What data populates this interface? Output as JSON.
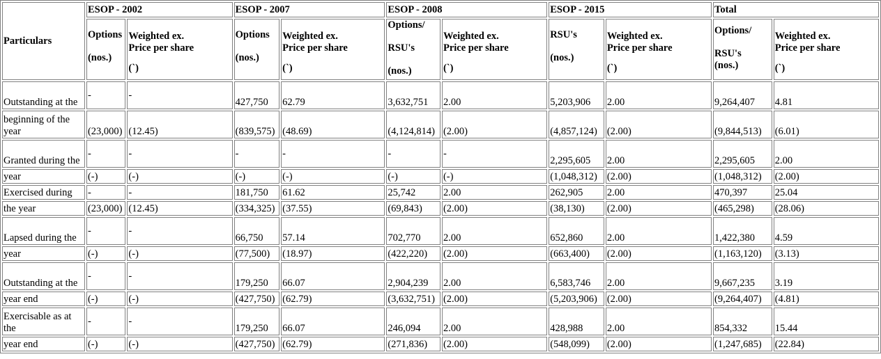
{
  "header": {
    "particulars": "Particulars",
    "groups": [
      "ESOP - 2002",
      "ESOP - 2007",
      "ESOP - 2008",
      "ESOP - 2015",
      "Total"
    ],
    "options": "Options",
    "nos": "(nos.)",
    "options_slash": "Options/",
    "rsus_cap": "RSU's",
    "weighted_line1": "Weighted ex.",
    "weighted_line2": "Price per share",
    "currency": "(`)"
  },
  "rows": [
    {
      "label": "Outstanding at the",
      "cells": [
        "-",
        "-",
        "427,750",
        "62.79",
        "3,632,751",
        "2.00",
        "5,203,906",
        "2.00",
        "9,264,407",
        "4.81"
      ]
    },
    {
      "label": "beginning of the year",
      "cells": [
        "(23,000)",
        "(12.45)",
        "(839,575)",
        "(48.69)",
        "(4,124,814)",
        "(2.00)",
        "(4,857,124)",
        "(2.00)",
        "(9,844,513)",
        "(6.01)"
      ]
    },
    {
      "label": "Granted during the",
      "cells": [
        "-",
        "-",
        "-",
        "-",
        "-",
        "-",
        "2,295,605",
        "2.00",
        "2,295,605",
        "2.00"
      ]
    },
    {
      "label": "year",
      "cells": [
        "(-)",
        "(-)",
        "(-)",
        "(-)",
        "(-)",
        "(-)",
        "(1,048,312)",
        "(2.00)",
        "(1,048,312)",
        "(2.00)"
      ]
    },
    {
      "label": "Exercised during",
      "cells": [
        "-",
        "-",
        "181,750",
        "61.62",
        "25,742",
        "2.00",
        "262,905",
        "2.00",
        "470,397",
        "25.04"
      ]
    },
    {
      "label": "the year",
      "cells": [
        "(23,000)",
        "(12.45)",
        "(334,325)",
        "(37.55)",
        "(69,843)",
        "(2.00)",
        "(38,130)",
        "(2.00)",
        "(465,298)",
        "(28.06)"
      ]
    },
    {
      "label": "Lapsed during the",
      "cells": [
        "-",
        "-",
        "66,750",
        "57.14",
        "702,770",
        "2.00",
        "652,860",
        "2.00",
        "1,422,380",
        "4.59"
      ]
    },
    {
      "label": "year",
      "cells": [
        "(-)",
        "(-)",
        "(77,500)",
        "(18.97)",
        "(422,220)",
        "(2.00)",
        "(663,400)",
        "(2.00)",
        "(1,163,120)",
        "(3.13)"
      ]
    },
    {
      "label": "Outstanding at the",
      "cells": [
        "-",
        "-",
        "179,250",
        "66.07",
        "2,904,239",
        "2.00",
        "6,583,746",
        "2.00",
        "9,667,235",
        "3.19"
      ]
    },
    {
      "label": "year end",
      "cells": [
        "(-)",
        "(-)",
        "(427,750)",
        "(62.79)",
        "(3,632,751)",
        "(2.00)",
        "(5,203,906)",
        "(2.00)",
        "(9,264,407)",
        "(4.81)"
      ]
    },
    {
      "label": "Exercisable as at the",
      "cells": [
        "-",
        "-",
        "179,250",
        "66.07",
        "246,094",
        "2.00",
        "428,988",
        "2.00",
        "854,332",
        "15.44"
      ]
    },
    {
      "label": "year end",
      "cells": [
        "(-)",
        "(-)",
        "(427,750)",
        "(62.79)",
        "(271,836)",
        "(2.00)",
        "(548,099)",
        "(2.00)",
        "(1,247,685)",
        "(22.84)"
      ]
    }
  ]
}
